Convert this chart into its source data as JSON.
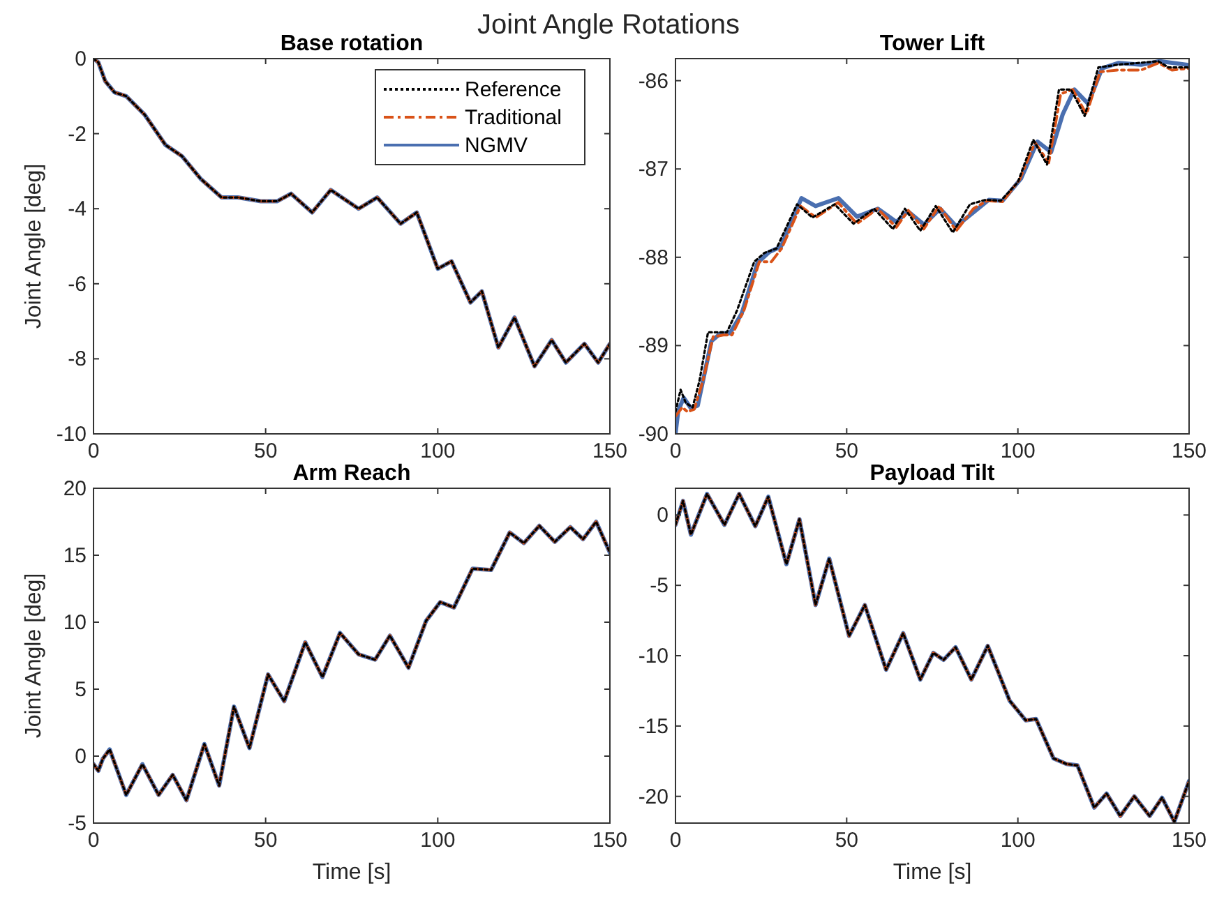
{
  "chart_data": [
    {
      "type": "line",
      "title": "Base rotation",
      "ylabel": "Joint Angle [deg]",
      "annotations": [
        "Joint Angle Rotations"
      ],
      "xlim": [
        0,
        150
      ],
      "xticks": [
        0,
        50,
        100,
        150
      ],
      "ylim": [
        -10,
        0
      ],
      "yticks": [
        -10,
        -8,
        -6,
        -4,
        -2,
        0
      ],
      "grid": false,
      "legend": "top right",
      "tick_labels": "xy",
      "x": [
        0,
        1.4,
        3.4,
        6.1,
        9.5,
        14.9,
        20.9,
        25.7,
        31.1,
        37.2,
        41.9,
        48.6,
        53.4,
        57.4,
        63.5,
        68.9,
        77,
        82.4,
        89.2,
        93.9,
        100,
        104,
        109.5,
        112.8,
        117.6,
        122.3,
        128.1,
        133.1,
        137.2,
        142.6,
        146.6,
        150
      ],
      "series": [
        {
          "name": "Reference",
          "color": "#000000",
          "line_style": "dotted",
          "values": [
            0,
            -0.1,
            -0.6,
            -0.9,
            -1.0,
            -1.5,
            -2.3,
            -2.6,
            -3.2,
            -3.7,
            -3.7,
            -3.8,
            -3.8,
            -3.6,
            -4.1,
            -3.5,
            -4.0,
            -3.7,
            -4.4,
            -4.1,
            -5.6,
            -5.4,
            -6.5,
            -6.2,
            -7.7,
            -6.9,
            -8.2,
            -7.5,
            -8.1,
            -7.6,
            -8.1,
            -7.6
          ]
        },
        {
          "name": "Traditional",
          "color": "#d95319",
          "line_style": "dashed",
          "values": [
            0,
            -0.1,
            -0.6,
            -0.9,
            -1.0,
            -1.5,
            -2.3,
            -2.6,
            -3.2,
            -3.7,
            -3.7,
            -3.8,
            -3.8,
            -3.6,
            -4.1,
            -3.5,
            -4.0,
            -3.7,
            -4.4,
            -4.1,
            -5.6,
            -5.4,
            -6.5,
            -6.2,
            -7.7,
            -6.9,
            -8.2,
            -7.5,
            -8.1,
            -7.6,
            -8.1,
            -7.6
          ]
        },
        {
          "name": "NGMV",
          "color": "#4a6fb0",
          "line_style": "solid",
          "values": [
            0,
            -0.1,
            -0.6,
            -0.9,
            -1.0,
            -1.5,
            -2.3,
            -2.6,
            -3.2,
            -3.7,
            -3.7,
            -3.8,
            -3.8,
            -3.6,
            -4.1,
            -3.5,
            -4.0,
            -3.7,
            -4.4,
            -4.1,
            -5.6,
            -5.4,
            -6.5,
            -6.2,
            -7.7,
            -6.9,
            -8.2,
            -7.5,
            -8.1,
            -7.6,
            -8.1,
            -7.6
          ]
        }
      ]
    },
    {
      "type": "line",
      "title": "Tower Lift",
      "xlim": [
        0,
        150
      ],
      "xticks": [
        0,
        50,
        100,
        150
      ],
      "ylim": [
        -90,
        -85.75
      ],
      "yticks": [
        -90,
        -89,
        -88,
        -87,
        -86
      ],
      "grid": false,
      "series": [
        {
          "color": "#000000",
          "line_style": "dotted",
          "x": [
            0,
            1.5,
            3,
            5,
            7,
            9.5,
            12,
            15,
            18,
            23,
            26,
            29.5,
            35.5,
            40,
            46.5,
            52,
            58,
            63.5,
            67,
            71.5,
            76,
            81,
            86,
            90.5,
            95,
            100,
            104.5,
            108.5,
            112,
            115.5,
            119.5,
            123.5,
            129,
            135,
            141,
            144,
            150
          ],
          "values": [
            -89.75,
            -89.5,
            -89.65,
            -89.7,
            -89.4,
            -88.85,
            -88.85,
            -88.85,
            -88.6,
            -88.05,
            -87.95,
            -87.9,
            -87.4,
            -87.55,
            -87.4,
            -87.62,
            -87.45,
            -87.68,
            -87.45,
            -87.7,
            -87.42,
            -87.72,
            -87.4,
            -87.35,
            -87.36,
            -87.15,
            -86.67,
            -86.95,
            -86.1,
            -86.1,
            -86.4,
            -85.85,
            -85.82,
            -85.8,
            -85.78,
            -85.85,
            -85.85
          ]
        },
        {
          "color": "#d95319",
          "line_style": "dashed",
          "x": [
            0,
            2,
            3.5,
            5.5,
            8,
            11,
            14,
            16.5,
            20,
            24.5,
            28,
            31,
            36.5,
            41,
            47.5,
            53,
            59,
            64.5,
            68,
            72.5,
            77,
            82,
            87,
            91,
            95.5,
            100.5,
            105,
            109,
            112.5,
            116,
            120,
            124,
            129,
            136,
            141,
            145,
            150
          ],
          "values": [
            -89.8,
            -89.7,
            -89.75,
            -89.72,
            -89.4,
            -88.9,
            -88.88,
            -88.88,
            -88.6,
            -88.05,
            -88.05,
            -87.9,
            -87.42,
            -87.55,
            -87.38,
            -87.62,
            -87.45,
            -87.66,
            -87.47,
            -87.68,
            -87.42,
            -87.7,
            -87.45,
            -87.36,
            -87.37,
            -87.12,
            -86.7,
            -86.93,
            -86.15,
            -86.1,
            -86.38,
            -85.9,
            -85.88,
            -85.88,
            -85.8,
            -85.88,
            -85.86
          ]
        },
        {
          "color": "#4a6fb0",
          "line_style": "solid",
          "x": [
            0,
            0.8,
            2.4,
            4.5,
            6.5,
            7.8,
            10.5,
            13.2,
            15.9,
            19.3,
            24,
            27.4,
            30.8,
            36.8,
            40.9,
            47.6,
            53,
            59.1,
            64.5,
            67.9,
            72.6,
            77.3,
            82,
            87.4,
            91.5,
            95.5,
            100.9,
            105.7,
            109.7,
            113.1,
            116.5,
            120.5,
            124.6,
            129.3,
            136,
            141.4,
            149.5
          ],
          "values": [
            -90,
            -89.74,
            -89.59,
            -89.71,
            -89.68,
            -89.44,
            -88.95,
            -88.86,
            -88.86,
            -88.64,
            -88.06,
            -87.94,
            -87.88,
            -87.33,
            -87.42,
            -87.33,
            -87.54,
            -87.45,
            -87.6,
            -87.48,
            -87.63,
            -87.45,
            -87.65,
            -87.48,
            -87.35,
            -87.36,
            -87.11,
            -86.69,
            -86.81,
            -86.38,
            -86.1,
            -86.26,
            -85.86,
            -85.8,
            -85.82,
            -85.78,
            -85.82
          ]
        }
      ]
    },
    {
      "type": "line",
      "title": "Arm Reach",
      "xlabel": "Time [s]",
      "ylabel": "Joint Angle [deg]",
      "xlim": [
        0,
        150
      ],
      "xticks": [
        0,
        50,
        100,
        150
      ],
      "ylim": [
        -5,
        20
      ],
      "yticks": [
        -5,
        0,
        5,
        10,
        15,
        20
      ],
      "grid": false,
      "x": [
        0,
        1.4,
        2.7,
        4.7,
        9.5,
        14.2,
        18.9,
        23,
        27,
        32.2,
        36.5,
        40.8,
        45.3,
        50.7,
        55.4,
        61.5,
        66.5,
        71.6,
        77,
        81.8,
        86.1,
        91.5,
        96.6,
        100.7,
        104.7,
        110.1,
        115.5,
        120.9,
        125,
        129.5,
        134,
        138.5,
        142.2,
        146,
        150
      ],
      "series": [
        {
          "color": "#000000",
          "line_style": "dotted",
          "values": [
            -0.6,
            -1.1,
            -0.2,
            0.5,
            -2.9,
            -0.6,
            -2.9,
            -1.4,
            -3.3,
            0.9,
            -2.2,
            3.7,
            0.6,
            6.1,
            4.1,
            8.5,
            5.9,
            9.2,
            7.6,
            7.2,
            9.0,
            6.6,
            10.1,
            11.5,
            11.1,
            14.0,
            13.9,
            16.7,
            15.9,
            17.2,
            16.0,
            17.1,
            16.2,
            17.5,
            15.2
          ]
        },
        {
          "color": "#d95319",
          "line_style": "dashed",
          "values": [
            -0.6,
            -1.1,
            -0.2,
            0.5,
            -2.9,
            -0.6,
            -2.9,
            -1.4,
            -3.3,
            0.9,
            -2.2,
            3.7,
            0.6,
            6.1,
            4.1,
            8.5,
            5.9,
            9.2,
            7.6,
            7.2,
            9.0,
            6.6,
            10.1,
            11.5,
            11.1,
            14.0,
            13.9,
            16.7,
            15.9,
            17.2,
            16.0,
            17.1,
            16.2,
            17.5,
            15.2
          ]
        },
        {
          "color": "#4a6fb0",
          "line_style": "solid",
          "values": [
            -0.6,
            -1.1,
            -0.2,
            0.5,
            -2.9,
            -0.6,
            -2.9,
            -1.4,
            -3.3,
            0.9,
            -2.2,
            3.7,
            0.6,
            6.1,
            4.1,
            8.5,
            5.9,
            9.2,
            7.6,
            7.2,
            9.0,
            6.6,
            10.1,
            11.5,
            11.1,
            14.0,
            13.9,
            16.7,
            15.9,
            17.2,
            16.0,
            17.1,
            16.2,
            17.5,
            15.2
          ]
        }
      ]
    },
    {
      "type": "line",
      "title": "Payload Tilt",
      "xlabel": "Time [s]",
      "xlim": [
        0,
        150
      ],
      "xticks": [
        0,
        50,
        100,
        150
      ],
      "ylim": [
        -21.9,
        1.9
      ],
      "yticks": [
        -20,
        -15,
        -10,
        -5,
        0
      ],
      "grid": false,
      "x": [
        0,
        2.2,
        4.5,
        9.2,
        14.3,
        18.6,
        23.3,
        27.1,
        32.4,
        36.2,
        40.9,
        44.9,
        50.7,
        55.3,
        61.5,
        66.5,
        71.5,
        75.3,
        78.3,
        81.8,
        86.4,
        91.2,
        97.6,
        102.3,
        105.3,
        110.4,
        114.2,
        117.4,
        122.3,
        125.9,
        129.9,
        134,
        138.5,
        142.1,
        145.7,
        150
      ],
      "series": [
        {
          "color": "#000000",
          "line_style": "dotted",
          "values": [
            -0.7,
            1.0,
            -1.4,
            1.5,
            -0.7,
            1.5,
            -0.8,
            1.3,
            -3.5,
            -0.3,
            -6.4,
            -3.1,
            -8.6,
            -6.4,
            -11.0,
            -8.4,
            -11.7,
            -9.8,
            -10.3,
            -9.4,
            -11.7,
            -9.3,
            -13.2,
            -14.6,
            -14.5,
            -17.3,
            -17.7,
            -17.8,
            -20.8,
            -19.8,
            -21.4,
            -20.0,
            -21.4,
            -20.1,
            -21.8,
            -18.9
          ]
        },
        {
          "color": "#d95319",
          "line_style": "dashed",
          "values": [
            -0.7,
            1.0,
            -1.4,
            1.5,
            -0.7,
            1.5,
            -0.8,
            1.3,
            -3.5,
            -0.3,
            -6.4,
            -3.1,
            -8.6,
            -6.4,
            -11.0,
            -8.4,
            -11.7,
            -9.8,
            -10.3,
            -9.4,
            -11.7,
            -9.3,
            -13.2,
            -14.6,
            -14.5,
            -17.3,
            -17.7,
            -17.8,
            -20.8,
            -19.8,
            -21.4,
            -20.0,
            -21.4,
            -20.1,
            -21.8,
            -18.9
          ]
        },
        {
          "color": "#4a6fb0",
          "line_style": "solid",
          "values": [
            -0.7,
            1.0,
            -1.4,
            1.5,
            -0.7,
            1.5,
            -0.8,
            1.3,
            -3.5,
            -0.3,
            -6.4,
            -3.1,
            -8.6,
            -6.4,
            -11.0,
            -8.4,
            -11.7,
            -9.8,
            -10.3,
            -9.4,
            -11.7,
            -9.3,
            -13.2,
            -14.6,
            -14.5,
            -17.3,
            -17.7,
            -17.8,
            -20.8,
            -19.8,
            -21.4,
            -20.0,
            -21.4,
            -20.1,
            -21.8,
            -18.9
          ]
        }
      ]
    }
  ]
}
